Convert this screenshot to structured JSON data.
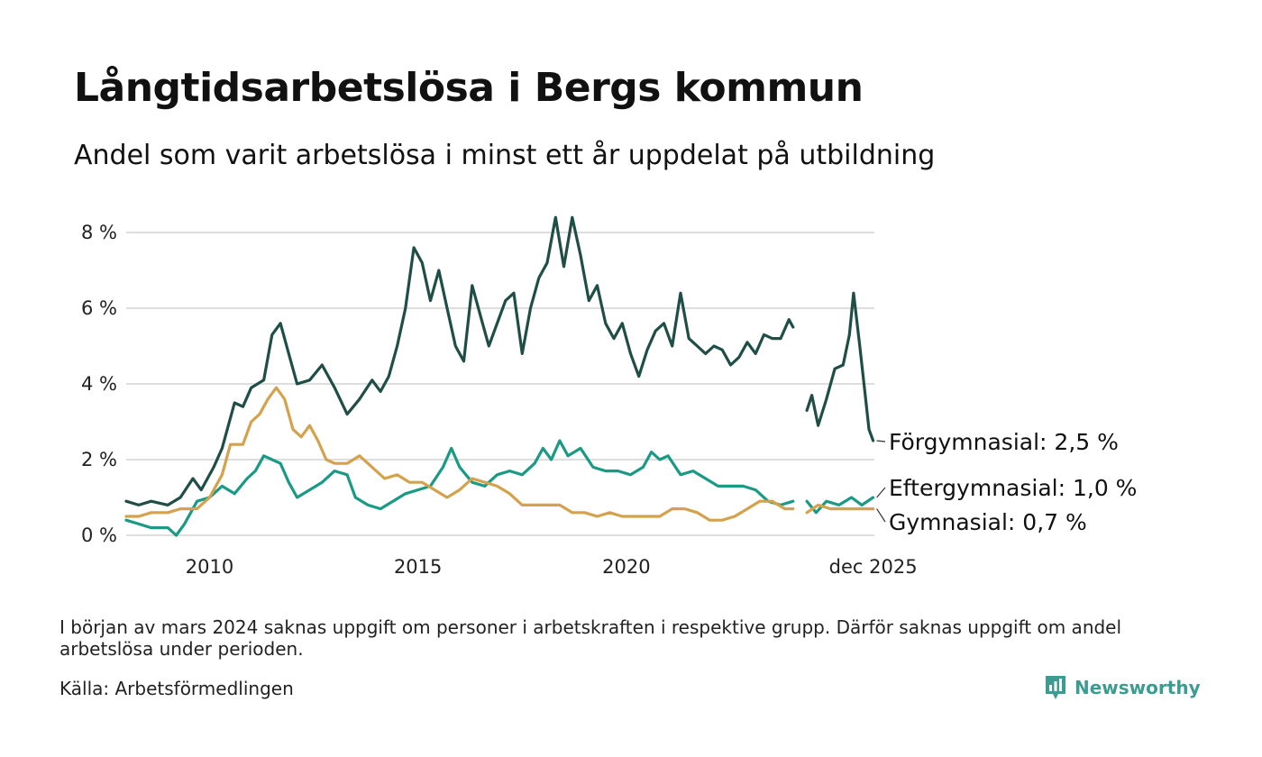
{
  "title": "Långtidsarbetslösa i Bergs kommun",
  "subtitle": "Andel som varit arbetslösa i minst ett år uppdelat på utbildning",
  "footnote": "I början av mars 2024 saknas uppgift om personer i arbetskraften i respektive grupp. Därför saknas uppgift om andel arbetslösa under perioden.",
  "source": "Källa: Arbetsförmedlingen",
  "brand": "Newsworthy",
  "colors": {
    "forgymnasial": "#1f4e47",
    "eftergymnasial": "#1a9a85",
    "gymnasial": "#d4a24c",
    "grid": "#dedede",
    "brand": "#3c9c91"
  },
  "chart_data": {
    "type": "line",
    "title": "Långtidsarbetslösa i Bergs kommun",
    "xlabel": "",
    "ylabel": "",
    "ylim": [
      0,
      8.6
    ],
    "xlim": [
      2008.0,
      2025.95
    ],
    "yticks": [
      0,
      2,
      4,
      6,
      8
    ],
    "ytick_labels": [
      "0 %",
      "2 %",
      "4 %",
      "6 %",
      "8 %"
    ],
    "xticks": [
      2010,
      2015,
      2020,
      2025.92
    ],
    "xtick_labels": [
      "2010",
      "2015",
      "2020",
      "dec 2025"
    ],
    "gap": [
      2024.0,
      2024.33
    ],
    "series": [
      {
        "name": "Förgymnasial",
        "end_label": "Förgymnasial: 2,5 %",
        "color_key": "forgymnasial",
        "points": [
          [
            2008.0,
            0.9
          ],
          [
            2008.3,
            0.8
          ],
          [
            2008.6,
            0.9
          ],
          [
            2009.0,
            0.8
          ],
          [
            2009.3,
            1.0
          ],
          [
            2009.6,
            1.5
          ],
          [
            2009.8,
            1.2
          ],
          [
            2010.1,
            1.8
          ],
          [
            2010.3,
            2.3
          ],
          [
            2010.6,
            3.5
          ],
          [
            2010.8,
            3.4
          ],
          [
            2011.0,
            3.9
          ],
          [
            2011.3,
            4.1
          ],
          [
            2011.5,
            5.3
          ],
          [
            2011.7,
            5.6
          ],
          [
            2011.9,
            4.8
          ],
          [
            2012.1,
            4.0
          ],
          [
            2012.4,
            4.1
          ],
          [
            2012.7,
            4.5
          ],
          [
            2013.0,
            3.9
          ],
          [
            2013.3,
            3.2
          ],
          [
            2013.6,
            3.6
          ],
          [
            2013.9,
            4.1
          ],
          [
            2014.1,
            3.8
          ],
          [
            2014.3,
            4.2
          ],
          [
            2014.5,
            5.0
          ],
          [
            2014.7,
            6.0
          ],
          [
            2014.9,
            7.6
          ],
          [
            2015.1,
            7.2
          ],
          [
            2015.3,
            6.2
          ],
          [
            2015.5,
            7.0
          ],
          [
            2015.7,
            6.0
          ],
          [
            2015.9,
            5.0
          ],
          [
            2016.1,
            4.6
          ],
          [
            2016.3,
            6.6
          ],
          [
            2016.5,
            5.8
          ],
          [
            2016.7,
            5.0
          ],
          [
            2016.9,
            5.6
          ],
          [
            2017.1,
            6.2
          ],
          [
            2017.3,
            6.4
          ],
          [
            2017.5,
            4.8
          ],
          [
            2017.7,
            6.0
          ],
          [
            2017.9,
            6.8
          ],
          [
            2018.1,
            7.2
          ],
          [
            2018.3,
            8.4
          ],
          [
            2018.5,
            7.1
          ],
          [
            2018.7,
            8.4
          ],
          [
            2018.9,
            7.4
          ],
          [
            2019.1,
            6.2
          ],
          [
            2019.3,
            6.6
          ],
          [
            2019.5,
            5.6
          ],
          [
            2019.7,
            5.2
          ],
          [
            2019.9,
            5.6
          ],
          [
            2020.1,
            4.8
          ],
          [
            2020.3,
            4.2
          ],
          [
            2020.5,
            4.9
          ],
          [
            2020.7,
            5.4
          ],
          [
            2020.9,
            5.6
          ],
          [
            2021.1,
            5.0
          ],
          [
            2021.3,
            6.4
          ],
          [
            2021.5,
            5.2
          ],
          [
            2021.7,
            5.0
          ],
          [
            2021.9,
            4.8
          ],
          [
            2022.1,
            5.0
          ],
          [
            2022.3,
            4.9
          ],
          [
            2022.5,
            4.5
          ],
          [
            2022.7,
            4.7
          ],
          [
            2022.9,
            5.1
          ],
          [
            2023.1,
            4.8
          ],
          [
            2023.3,
            5.3
          ],
          [
            2023.5,
            5.2
          ],
          [
            2023.7,
            5.2
          ],
          [
            2023.9,
            5.7
          ],
          [
            2024.0,
            5.5
          ],
          [
            2024.33,
            3.3
          ],
          [
            2024.45,
            3.7
          ],
          [
            2024.6,
            2.9
          ],
          [
            2024.8,
            3.6
          ],
          [
            2025.0,
            4.4
          ],
          [
            2025.2,
            4.5
          ],
          [
            2025.35,
            5.3
          ],
          [
            2025.45,
            6.4
          ],
          [
            2025.6,
            5.0
          ],
          [
            2025.72,
            3.8
          ],
          [
            2025.82,
            2.8
          ],
          [
            2025.92,
            2.5
          ]
        ]
      },
      {
        "name": "Eftergymnasial",
        "end_label": "Eftergymnasial: 1,0 %",
        "color_key": "eftergymnasial",
        "points": [
          [
            2008.0,
            0.4
          ],
          [
            2008.3,
            0.3
          ],
          [
            2008.6,
            0.2
          ],
          [
            2009.0,
            0.2
          ],
          [
            2009.2,
            0.0
          ],
          [
            2009.4,
            0.3
          ],
          [
            2009.7,
            0.9
          ],
          [
            2010.0,
            1.0
          ],
          [
            2010.3,
            1.3
          ],
          [
            2010.6,
            1.1
          ],
          [
            2010.9,
            1.5
          ],
          [
            2011.1,
            1.7
          ],
          [
            2011.3,
            2.1
          ],
          [
            2011.5,
            2.0
          ],
          [
            2011.7,
            1.9
          ],
          [
            2011.9,
            1.4
          ],
          [
            2012.1,
            1.0
          ],
          [
            2012.4,
            1.2
          ],
          [
            2012.7,
            1.4
          ],
          [
            2013.0,
            1.7
          ],
          [
            2013.3,
            1.6
          ],
          [
            2013.5,
            1.0
          ],
          [
            2013.8,
            0.8
          ],
          [
            2014.1,
            0.7
          ],
          [
            2014.4,
            0.9
          ],
          [
            2014.7,
            1.1
          ],
          [
            2015.0,
            1.2
          ],
          [
            2015.3,
            1.3
          ],
          [
            2015.6,
            1.8
          ],
          [
            2015.8,
            2.3
          ],
          [
            2016.0,
            1.8
          ],
          [
            2016.3,
            1.4
          ],
          [
            2016.6,
            1.3
          ],
          [
            2016.9,
            1.6
          ],
          [
            2017.2,
            1.7
          ],
          [
            2017.5,
            1.6
          ],
          [
            2017.8,
            1.9
          ],
          [
            2018.0,
            2.3
          ],
          [
            2018.2,
            2.0
          ],
          [
            2018.4,
            2.5
          ],
          [
            2018.6,
            2.1
          ],
          [
            2018.9,
            2.3
          ],
          [
            2019.2,
            1.8
          ],
          [
            2019.5,
            1.7
          ],
          [
            2019.8,
            1.7
          ],
          [
            2020.1,
            1.6
          ],
          [
            2020.4,
            1.8
          ],
          [
            2020.6,
            2.2
          ],
          [
            2020.8,
            2.0
          ],
          [
            2021.0,
            2.1
          ],
          [
            2021.3,
            1.6
          ],
          [
            2021.6,
            1.7
          ],
          [
            2021.9,
            1.5
          ],
          [
            2022.2,
            1.3
          ],
          [
            2022.5,
            1.3
          ],
          [
            2022.8,
            1.3
          ],
          [
            2023.1,
            1.2
          ],
          [
            2023.4,
            0.9
          ],
          [
            2023.7,
            0.8
          ],
          [
            2024.0,
            0.9
          ],
          [
            2024.33,
            0.9
          ],
          [
            2024.55,
            0.6
          ],
          [
            2024.8,
            0.9
          ],
          [
            2025.1,
            0.8
          ],
          [
            2025.4,
            1.0
          ],
          [
            2025.65,
            0.8
          ],
          [
            2025.92,
            1.0
          ]
        ]
      },
      {
        "name": "Gymnasial",
        "end_label": "Gymnasial: 0,7 %",
        "color_key": "gymnasial",
        "points": [
          [
            2008.0,
            0.5
          ],
          [
            2008.3,
            0.5
          ],
          [
            2008.6,
            0.6
          ],
          [
            2009.0,
            0.6
          ],
          [
            2009.3,
            0.7
          ],
          [
            2009.7,
            0.7
          ],
          [
            2010.0,
            1.0
          ],
          [
            2010.3,
            1.6
          ],
          [
            2010.5,
            2.4
          ],
          [
            2010.8,
            2.4
          ],
          [
            2011.0,
            3.0
          ],
          [
            2011.2,
            3.2
          ],
          [
            2011.4,
            3.6
          ],
          [
            2011.6,
            3.9
          ],
          [
            2011.8,
            3.6
          ],
          [
            2012.0,
            2.8
          ],
          [
            2012.2,
            2.6
          ],
          [
            2012.4,
            2.9
          ],
          [
            2012.6,
            2.5
          ],
          [
            2012.8,
            2.0
          ],
          [
            2013.0,
            1.9
          ],
          [
            2013.3,
            1.9
          ],
          [
            2013.6,
            2.1
          ],
          [
            2013.9,
            1.8
          ],
          [
            2014.2,
            1.5
          ],
          [
            2014.5,
            1.6
          ],
          [
            2014.8,
            1.4
          ],
          [
            2015.1,
            1.4
          ],
          [
            2015.4,
            1.2
          ],
          [
            2015.7,
            1.0
          ],
          [
            2016.0,
            1.2
          ],
          [
            2016.3,
            1.5
          ],
          [
            2016.6,
            1.4
          ],
          [
            2016.9,
            1.3
          ],
          [
            2017.2,
            1.1
          ],
          [
            2017.5,
            0.8
          ],
          [
            2017.8,
            0.8
          ],
          [
            2018.1,
            0.8
          ],
          [
            2018.4,
            0.8
          ],
          [
            2018.7,
            0.6
          ],
          [
            2019.0,
            0.6
          ],
          [
            2019.3,
            0.5
          ],
          [
            2019.6,
            0.6
          ],
          [
            2019.9,
            0.5
          ],
          [
            2020.2,
            0.5
          ],
          [
            2020.5,
            0.5
          ],
          [
            2020.8,
            0.5
          ],
          [
            2021.1,
            0.7
          ],
          [
            2021.4,
            0.7
          ],
          [
            2021.7,
            0.6
          ],
          [
            2022.0,
            0.4
          ],
          [
            2022.3,
            0.4
          ],
          [
            2022.6,
            0.5
          ],
          [
            2022.9,
            0.7
          ],
          [
            2023.2,
            0.9
          ],
          [
            2023.5,
            0.9
          ],
          [
            2023.8,
            0.7
          ],
          [
            2024.0,
            0.7
          ],
          [
            2024.33,
            0.6
          ],
          [
            2024.6,
            0.8
          ],
          [
            2024.9,
            0.7
          ],
          [
            2025.2,
            0.7
          ],
          [
            2025.5,
            0.7
          ],
          [
            2025.92,
            0.7
          ]
        ]
      }
    ]
  }
}
